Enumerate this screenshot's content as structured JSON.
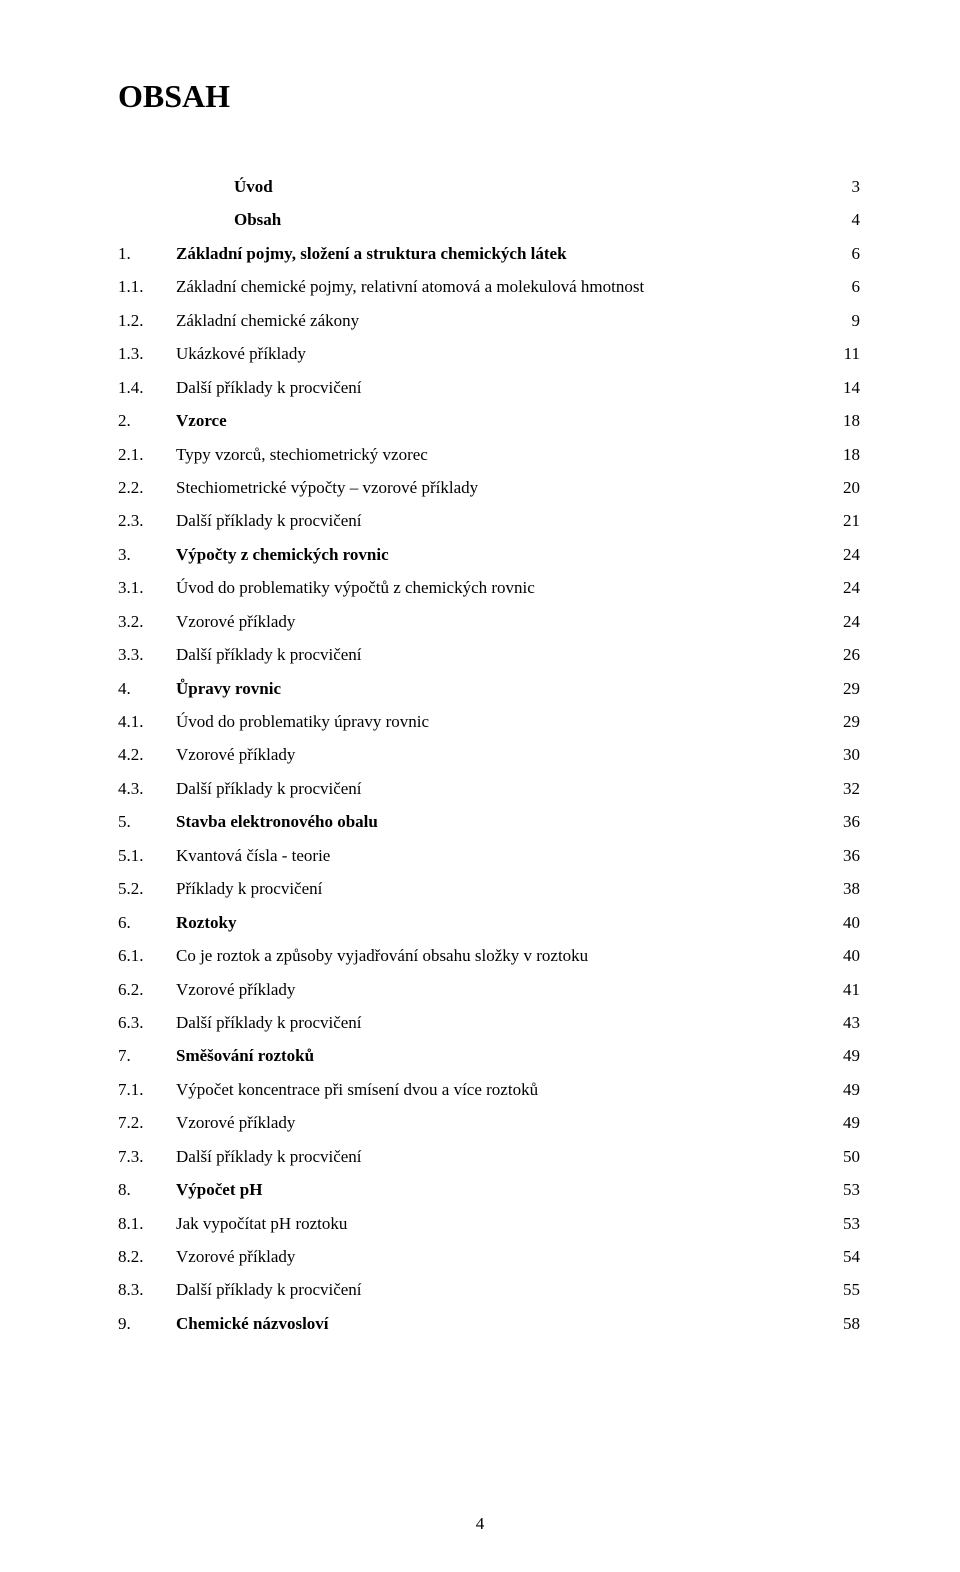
{
  "title": "OBSAH",
  "pageNumber": "4",
  "entries": [
    {
      "num": "",
      "indent": 1,
      "label": "Úvod",
      "page": "3",
      "bold": true
    },
    {
      "num": "",
      "indent": 1,
      "label": "Obsah",
      "page": "4",
      "bold": true
    },
    {
      "num": "1.",
      "indent": 0,
      "label": "Základní pojmy, složení a struktura chemických látek",
      "page": "6",
      "bold": true
    },
    {
      "num": "1.1.",
      "indent": 0,
      "label": "Základní chemické pojmy, relativní atomová a molekulová hmotnost",
      "page": "6",
      "bold": false
    },
    {
      "num": "1.2.",
      "indent": 0,
      "label": "Základní chemické zákony",
      "page": "9",
      "bold": false
    },
    {
      "num": "1.3.",
      "indent": 0,
      "label": "Ukázkové příklady",
      "page": "11",
      "bold": false
    },
    {
      "num": "1.4.",
      "indent": 0,
      "label": "Další příklady k procvičení",
      "page": "14",
      "bold": false
    },
    {
      "num": "2.",
      "indent": 0,
      "label": "Vzorce",
      "page": "18",
      "bold": true
    },
    {
      "num": "2.1.",
      "indent": 0,
      "label": "Typy vzorců, stechiometrický vzorec",
      "page": "18",
      "bold": false
    },
    {
      "num": "2.2.",
      "indent": 0,
      "label": "Stechiometrické výpočty – vzorové příklady",
      "page": "20",
      "bold": false
    },
    {
      "num": "2.3.",
      "indent": 0,
      "label": "Další příklady k procvičení",
      "page": "21",
      "bold": false
    },
    {
      "num": "3.",
      "indent": 0,
      "label": "Výpočty z chemických rovnic",
      "page": "24",
      "bold": true
    },
    {
      "num": "3.1.",
      "indent": 0,
      "label": "Úvod do problematiky výpočtů z chemických rovnic",
      "page": "24",
      "bold": false
    },
    {
      "num": "3.2.",
      "indent": 0,
      "label": "Vzorové příklady",
      "page": "24",
      "bold": false
    },
    {
      "num": "3.3.",
      "indent": 0,
      "label": "Další příklady k procvičení",
      "page": "26",
      "bold": false
    },
    {
      "num": "4.",
      "indent": 0,
      "label": "Ůpravy rovnic",
      "page": "29",
      "bold": true
    },
    {
      "num": "4.1.",
      "indent": 0,
      "label": "Úvod do problematiky úpravy rovnic",
      "page": "29",
      "bold": false
    },
    {
      "num": "4.2.",
      "indent": 0,
      "label": "Vzorové příklady",
      "page": "30",
      "bold": false
    },
    {
      "num": "4.3.",
      "indent": 0,
      "label": "Další příklady k procvičení",
      "page": "32",
      "bold": false
    },
    {
      "num": "5.",
      "indent": 0,
      "label": "Stavba elektronového obalu",
      "page": "36",
      "bold": true
    },
    {
      "num": "5.1.",
      "indent": 0,
      "label": "Kvantová čísla - teorie",
      "page": "36",
      "bold": false
    },
    {
      "num": "5.2.",
      "indent": 0,
      "label": "Příklady k procvičení",
      "page": "38",
      "bold": false
    },
    {
      "num": "6.",
      "indent": 0,
      "label": "Roztoky",
      "page": "40",
      "bold": true
    },
    {
      "num": "6.1.",
      "indent": 0,
      "label": "Co je roztok a způsoby vyjadřování obsahu složky v roztoku",
      "page": "40",
      "bold": false
    },
    {
      "num": "6.2.",
      "indent": 0,
      "label": "Vzorové příklady",
      "page": "41",
      "bold": false
    },
    {
      "num": "6.3.",
      "indent": 0,
      "label": "Další příklady k procvičení",
      "page": "43",
      "bold": false
    },
    {
      "num": "7.",
      "indent": 0,
      "label": "Směšování roztoků",
      "page": "49",
      "bold": true
    },
    {
      "num": "7.1.",
      "indent": 0,
      "label": "Výpočet koncentrace při smísení dvou a více roztoků",
      "page": "49",
      "bold": false
    },
    {
      "num": "7.2.",
      "indent": 0,
      "label": "Vzorové příklady",
      "page": "49",
      "bold": false
    },
    {
      "num": "7.3.",
      "indent": 0,
      "label": "Další příklady k procvičení",
      "page": "50",
      "bold": false
    },
    {
      "num": "8.",
      "indent": 0,
      "label": "Výpočet pH",
      "page": "53",
      "bold": true
    },
    {
      "num": "8.1.",
      "indent": 0,
      "label": "Jak vypočítat pH roztoku",
      "page": "53",
      "bold": false
    },
    {
      "num": "8.2.",
      "indent": 0,
      "label": "Vzorové příklady",
      "page": "54",
      "bold": false
    },
    {
      "num": "8.3.",
      "indent": 0,
      "label": "Další příklady k procvičení",
      "page": "55",
      "bold": false
    },
    {
      "num": "9.",
      "indent": 0,
      "label": "Chemické názvosloví",
      "page": "58",
      "bold": true
    }
  ]
}
